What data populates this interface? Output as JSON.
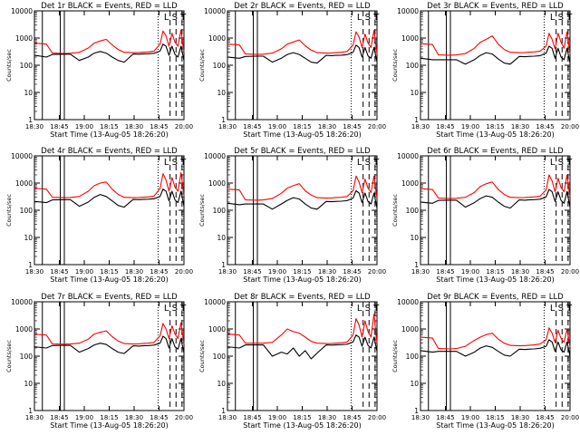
{
  "figure": {
    "x_tick_labels": [
      "18:30",
      "18:45",
      "19:00",
      "18:15",
      "18:30",
      "18:45",
      "20:00"
    ],
    "xlabel": "Start Time (13-Aug-05 18:26:20)",
    "ylabel": "Counts/sec",
    "y_tick_labels": [
      "1",
      "10",
      "100",
      "1000",
      "10000"
    ],
    "marker_text": "L S T",
    "colors": {
      "events": "#000000",
      "lld": "#ff0000",
      "axes": "#000000",
      "background": "#ffffff"
    }
  },
  "chart_data": [
    {
      "type": "line",
      "title": "Det 1r  BLACK = Events, RED = LLD",
      "yscale": "log",
      "ylim": [
        1,
        10000
      ],
      "xlim": [
        0,
        100
      ],
      "xlabel": "Start Time (13-Aug-05 18:26:20)",
      "ylabel": "Counts/sec",
      "x": [
        0,
        2,
        8,
        12,
        20,
        24,
        30,
        36,
        40,
        44,
        48,
        52,
        56,
        60,
        66,
        70,
        72,
        76,
        80,
        84,
        86,
        88,
        90,
        92,
        94,
        96,
        98,
        100
      ],
      "series": [
        {
          "name": "LLD",
          "color": "#ff0000",
          "values": [
            650,
            640,
            600,
            280,
            270,
            275,
            300,
            430,
            650,
            780,
            900,
            560,
            380,
            300,
            290,
            295,
            300,
            310,
            330,
            600,
            1800,
            1200,
            500,
            1500,
            700,
            500,
            2000,
            300
          ]
        },
        {
          "name": "Events",
          "color": "#000000",
          "values": [
            230,
            225,
            200,
            250,
            255,
            255,
            150,
            200,
            280,
            320,
            280,
            200,
            150,
            130,
            260,
            255,
            260,
            265,
            275,
            330,
            600,
            500,
            230,
            500,
            250,
            200,
            500,
            150
          ]
        }
      ],
      "solid_vlines": [
        5.3,
        17.3,
        20.0
      ],
      "dotted_vlines": [
        82.7
      ],
      "dashed_vlines": [
        90.7,
        94.7,
        98.7
      ]
    },
    {
      "type": "line",
      "title": "Det 2r  BLACK = Events, RED = LLD",
      "yscale": "log",
      "ylim": [
        1,
        10000
      ],
      "xlim": [
        0,
        100
      ],
      "xlabel": "Start Time (13-Aug-05 18:26:20)",
      "ylabel": "Counts/sec",
      "x": [
        0,
        2,
        8,
        12,
        20,
        24,
        30,
        36,
        40,
        44,
        48,
        52,
        56,
        60,
        66,
        70,
        72,
        76,
        80,
        84,
        86,
        88,
        90,
        92,
        94,
        96,
        98,
        100
      ],
      "series": [
        {
          "name": "LLD",
          "color": "#ff0000",
          "values": [
            600,
            590,
            560,
            260,
            250,
            255,
            280,
            400,
            600,
            720,
            850,
            520,
            360,
            290,
            280,
            285,
            290,
            300,
            320,
            550,
            1700,
            1100,
            450,
            1400,
            650,
            450,
            1900,
            280
          ]
        },
        {
          "name": "Events",
          "color": "#000000",
          "values": [
            200,
            195,
            180,
            210,
            215,
            215,
            130,
            180,
            250,
            290,
            250,
            180,
            130,
            120,
            230,
            225,
            230,
            235,
            245,
            300,
            550,
            450,
            200,
            450,
            220,
            180,
            450,
            130
          ]
        }
      ],
      "solid_vlines": [
        5.3,
        17.3,
        20.0
      ],
      "dotted_vlines": [
        82.7
      ],
      "dashed_vlines": [
        90.7,
        94.7,
        98.7
      ]
    },
    {
      "type": "line",
      "title": "Det 3r  BLACK = Events, RED = LLD",
      "yscale": "log",
      "ylim": [
        1,
        10000
      ],
      "xlim": [
        0,
        100
      ],
      "xlabel": "Start Time (13-Aug-05 18:26:20)",
      "ylabel": "Counts/sec",
      "x": [
        0,
        2,
        8,
        12,
        20,
        24,
        30,
        36,
        40,
        44,
        48,
        52,
        56,
        60,
        66,
        70,
        72,
        76,
        80,
        84,
        86,
        88,
        90,
        92,
        94,
        96,
        98,
        100
      ],
      "series": [
        {
          "name": "LLD",
          "color": "#ff0000",
          "values": [
            620,
            610,
            580,
            240,
            235,
            240,
            270,
            420,
            700,
            900,
            1200,
            600,
            380,
            300,
            290,
            295,
            300,
            310,
            330,
            500,
            1500,
            900,
            400,
            1500,
            700,
            420,
            1700,
            260
          ]
        },
        {
          "name": "Events",
          "color": "#000000",
          "values": [
            180,
            175,
            160,
            160,
            160,
            160,
            110,
            160,
            230,
            290,
            260,
            170,
            120,
            110,
            210,
            205,
            210,
            215,
            225,
            280,
            500,
            420,
            180,
            420,
            200,
            160,
            420,
            120
          ]
        }
      ],
      "solid_vlines": [
        5.3,
        17.3,
        20.0
      ],
      "dotted_vlines": [
        82.7
      ],
      "dashed_vlines": [
        90.7,
        94.7,
        98.7
      ]
    },
    {
      "type": "line",
      "title": "Det 4r  BLACK = Events, RED = LLD",
      "yscale": "log",
      "ylim": [
        1,
        10000
      ],
      "xlim": [
        0,
        100
      ],
      "xlabel": "Start Time (13-Aug-05 18:26:20)",
      "ylabel": "Counts/sec",
      "x": [
        0,
        2,
        8,
        12,
        20,
        24,
        30,
        36,
        40,
        44,
        48,
        52,
        56,
        60,
        66,
        70,
        72,
        76,
        80,
        84,
        86,
        88,
        90,
        92,
        94,
        96,
        98,
        100
      ],
      "series": [
        {
          "name": "LLD",
          "color": "#ff0000",
          "values": [
            640,
            630,
            600,
            300,
            290,
            295,
            320,
            500,
            800,
            1000,
            1100,
            600,
            380,
            300,
            290,
            295,
            300,
            310,
            330,
            620,
            2200,
            1300,
            500,
            1600,
            700,
            500,
            2400,
            350
          ]
        },
        {
          "name": "Events",
          "color": "#000000",
          "values": [
            210,
            205,
            190,
            240,
            245,
            245,
            140,
            200,
            300,
            380,
            320,
            220,
            150,
            130,
            250,
            245,
            250,
            255,
            265,
            320,
            600,
            500,
            220,
            500,
            240,
            190,
            500,
            140
          ]
        }
      ],
      "solid_vlines": [
        5.3,
        17.3,
        20.0
      ],
      "dotted_vlines": [
        82.7
      ],
      "dashed_vlines": [
        90.7,
        94.7,
        98.7
      ]
    },
    {
      "type": "line",
      "title": "Det 5r  BLACK = Events, RED = LLD",
      "yscale": "log",
      "ylim": [
        1,
        10000
      ],
      "xlim": [
        0,
        100
      ],
      "xlabel": "Start Time (13-Aug-05 18:26:20)",
      "ylabel": "Counts/sec",
      "x": [
        0,
        2,
        8,
        12,
        20,
        24,
        30,
        36,
        40,
        44,
        48,
        52,
        56,
        60,
        66,
        70,
        72,
        76,
        80,
        84,
        86,
        88,
        90,
        92,
        94,
        96,
        98,
        100
      ],
      "series": [
        {
          "name": "LLD",
          "color": "#ff0000",
          "values": [
            600,
            590,
            560,
            240,
            235,
            240,
            270,
            420,
            650,
            800,
            950,
            520,
            360,
            290,
            280,
            285,
            290,
            300,
            320,
            520,
            1800,
            1100,
            450,
            1400,
            650,
            450,
            1800,
            280
          ]
        },
        {
          "name": "Events",
          "color": "#000000",
          "values": [
            180,
            175,
            160,
            170,
            170,
            170,
            110,
            170,
            230,
            290,
            260,
            170,
            120,
            110,
            210,
            205,
            210,
            215,
            225,
            280,
            520,
            430,
            190,
            430,
            210,
            170,
            430,
            120
          ]
        }
      ],
      "solid_vlines": [
        5.3,
        17.3,
        20.0
      ],
      "dotted_vlines": [
        82.7
      ],
      "dashed_vlines": [
        90.7,
        94.7,
        98.7
      ]
    },
    {
      "type": "line",
      "title": "Det 6r  BLACK = Events, RED = LLD",
      "yscale": "log",
      "ylim": [
        1,
        10000
      ],
      "xlim": [
        0,
        100
      ],
      "xlabel": "Start Time (13-Aug-05 18:26:20)",
      "ylabel": "Counts/sec",
      "x": [
        0,
        2,
        8,
        12,
        20,
        24,
        30,
        36,
        40,
        44,
        48,
        52,
        56,
        60,
        66,
        70,
        72,
        76,
        80,
        84,
        86,
        88,
        90,
        92,
        94,
        96,
        98,
        100
      ],
      "series": [
        {
          "name": "LLD",
          "color": "#ff0000",
          "values": [
            620,
            610,
            580,
            280,
            270,
            275,
            300,
            450,
            750,
            950,
            1100,
            580,
            380,
            300,
            290,
            295,
            300,
            310,
            330,
            560,
            2000,
            1200,
            480,
            1500,
            680,
            480,
            2000,
            300
          ]
        },
        {
          "name": "Events",
          "color": "#000000",
          "values": [
            200,
            195,
            180,
            230,
            235,
            235,
            130,
            190,
            270,
            340,
            300,
            200,
            140,
            120,
            240,
            235,
            240,
            245,
            255,
            310,
            580,
            480,
            210,
            480,
            230,
            180,
            480,
            130
          ]
        }
      ],
      "solid_vlines": [
        5.3,
        17.3,
        20.0
      ],
      "dotted_vlines": [
        82.7
      ],
      "dashed_vlines": [
        90.7,
        94.7,
        98.7
      ]
    },
    {
      "type": "line",
      "title": "Det 7r  BLACK = Events, RED = LLD",
      "yscale": "log",
      "ylim": [
        1,
        10000
      ],
      "xlim": [
        0,
        100
      ],
      "xlabel": "Start Time (13-Aug-05 18:26:20)",
      "ylabel": "Counts/sec",
      "x": [
        0,
        2,
        8,
        12,
        20,
        24,
        30,
        36,
        40,
        44,
        48,
        52,
        56,
        60,
        66,
        70,
        72,
        76,
        80,
        84,
        86,
        88,
        90,
        92,
        94,
        96,
        98,
        100
      ],
      "series": [
        {
          "name": "LLD",
          "color": "#ff0000",
          "values": [
            640,
            630,
            600,
            280,
            275,
            280,
            300,
            420,
            650,
            750,
            850,
            520,
            360,
            290,
            280,
            285,
            290,
            300,
            320,
            560,
            1600,
            1000,
            450,
            1300,
            650,
            450,
            1700,
            280
          ]
        },
        {
          "name": "Events",
          "color": "#000000",
          "values": [
            220,
            215,
            200,
            245,
            250,
            250,
            140,
            190,
            260,
            300,
            270,
            190,
            140,
            125,
            240,
            235,
            240,
            245,
            255,
            300,
            540,
            440,
            200,
            440,
            220,
            180,
            440,
            130
          ]
        }
      ],
      "solid_vlines": [
        5.3,
        17.3,
        20.0
      ],
      "dotted_vlines": [
        82.7
      ],
      "dashed_vlines": [
        90.7,
        94.7,
        98.7
      ]
    },
    {
      "type": "line",
      "title": "Det 8r  BLACK = Events, RED = LLD",
      "yscale": "log",
      "ylim": [
        1,
        10000
      ],
      "xlim": [
        0,
        100
      ],
      "xlabel": "Start Time (13-Aug-05 18:26:20)",
      "ylabel": "Counts/sec",
      "x": [
        0,
        2,
        8,
        12,
        20,
        24,
        30,
        36,
        40,
        44,
        48,
        52,
        56,
        60,
        66,
        70,
        72,
        76,
        80,
        84,
        86,
        88,
        90,
        92,
        94,
        96,
        98,
        100
      ],
      "series": [
        {
          "name": "LLD",
          "color": "#ff0000",
          "values": [
            650,
            640,
            600,
            300,
            300,
            300,
            320,
            600,
            1000,
            800,
            700,
            500,
            350,
            300,
            290,
            295,
            300,
            310,
            330,
            600,
            2400,
            1400,
            500,
            2000,
            800,
            500,
            3500,
            300
          ]
        },
        {
          "name": "Events",
          "color": "#000000",
          "values": [
            220,
            215,
            200,
            260,
            260,
            260,
            100,
            140,
            120,
            200,
            100,
            160,
            80,
            130,
            260,
            255,
            260,
            265,
            275,
            330,
            600,
            500,
            230,
            500,
            250,
            200,
            500,
            150
          ]
        }
      ],
      "solid_vlines": [
        5.3,
        17.3,
        20.0
      ],
      "dotted_vlines": [
        82.7
      ],
      "dashed_vlines": [
        90.7,
        94.7,
        98.7
      ]
    },
    {
      "type": "line",
      "title": "Det 9r  BLACK = Events, RED = LLD",
      "yscale": "log",
      "ylim": [
        1,
        10000
      ],
      "xlim": [
        0,
        100
      ],
      "xlabel": "Start Time (13-Aug-05 18:26:20)",
      "ylabel": "Counts/sec",
      "x": [
        0,
        2,
        8,
        12,
        20,
        24,
        30,
        36,
        40,
        44,
        48,
        52,
        56,
        60,
        66,
        70,
        72,
        76,
        80,
        84,
        86,
        88,
        90,
        92,
        94,
        96,
        98,
        100
      ],
      "series": [
        {
          "name": "LLD",
          "color": "#ff0000",
          "values": [
            500,
            490,
            460,
            190,
            185,
            190,
            230,
            380,
            500,
            620,
            700,
            420,
            300,
            250,
            240,
            245,
            250,
            260,
            280,
            400,
            1100,
            700,
            320,
            900,
            450,
            320,
            1000,
            220
          ]
        },
        {
          "name": "Events",
          "color": "#000000",
          "values": [
            160,
            155,
            140,
            150,
            150,
            150,
            100,
            140,
            200,
            240,
            210,
            150,
            110,
            100,
            180,
            175,
            180,
            185,
            195,
            230,
            400,
            330,
            150,
            330,
            170,
            140,
            330,
            100
          ]
        }
      ],
      "solid_vlines": [
        5.3,
        17.3,
        20.0
      ],
      "dotted_vlines": [
        82.7
      ],
      "dashed_vlines": [
        90.7,
        94.7,
        98.7
      ]
    }
  ]
}
